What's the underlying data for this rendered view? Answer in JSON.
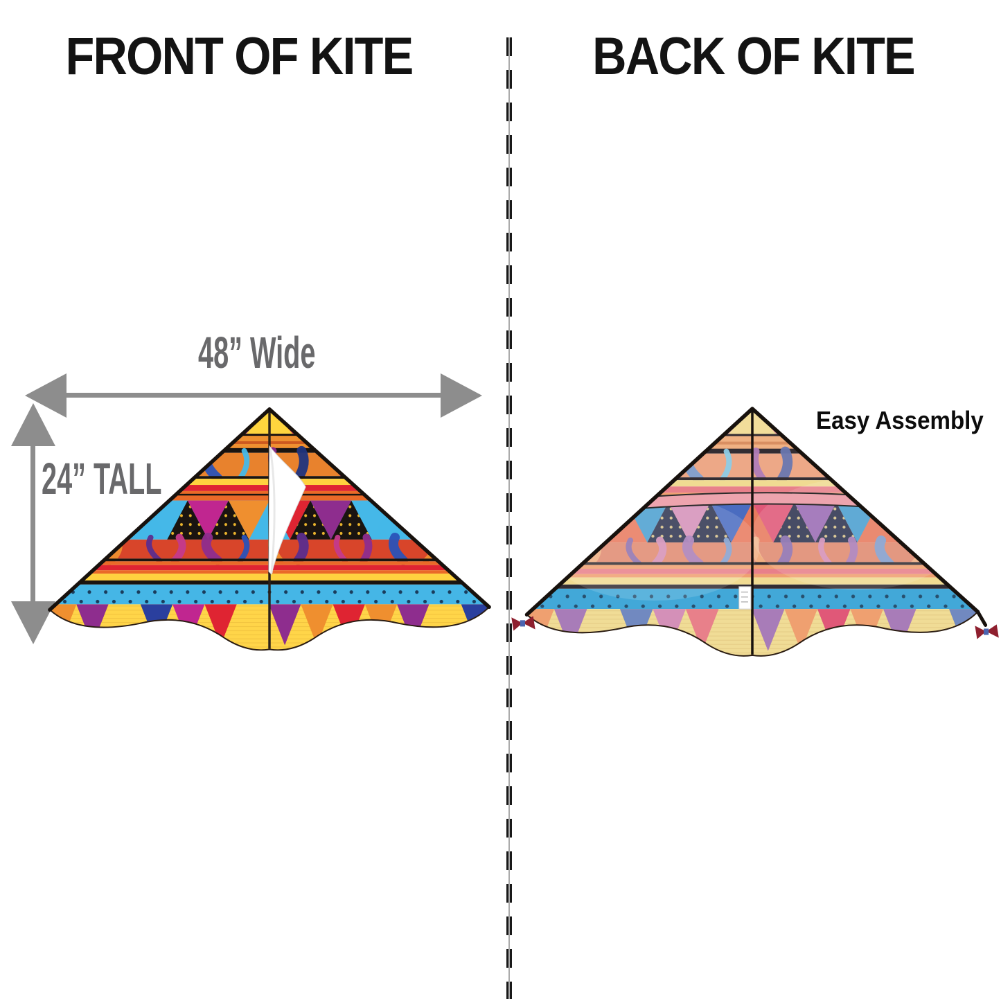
{
  "titles": {
    "front": "FRONT OF KITE",
    "back": "BACK OF KITE"
  },
  "annotations": {
    "width_label": "48” Wide",
    "height_label": "24” TALL",
    "assembly_label": "Easy Assembly",
    "width_value_inches": 48,
    "height_value_inches": 24
  },
  "colors": {
    "background": "#ffffff",
    "title_text": "#131313",
    "dimension_text": "#69696b",
    "assembly_text": "#0c0c0c",
    "arrow": "#8d8d8d",
    "divider_dash": "#191919",
    "divider_line": "#ababab"
  },
  "kites": {
    "front": {
      "label": "front-of-kite",
      "features": {
        "keel_flap": true,
        "spreader_pocket": false,
        "label_tag": false,
        "tassels": false,
        "sheen": false
      },
      "palette": {
        "edge": "#17110d",
        "spine": "#2a211a",
        "hem": "#2a1c12",
        "apex_left": "#e0529c",
        "apex_center": "#ffd53e",
        "apex_right": "#e23a50",
        "band_black": "#1a1410",
        "orange_band": "#ef9030",
        "orange_stripe": "#cd5a1f",
        "zebra1_base": "#e8822d",
        "zebra1": [
          "#2a52b8",
          "#45b8e8",
          "#8e2d8e",
          "#20347e",
          "#c43a8c"
        ],
        "yellow": "#ffd23f",
        "red": "#df2432",
        "orange2": "#ea6a28",
        "tri_bg": "#44b8e8",
        "tri_black": "#1a1410",
        "tri_dot": "#eab42c",
        "tri_down": [
          "#df2432",
          "#8e2d8e",
          "#45b8e8",
          "#c02690",
          "#ef8f2f"
        ],
        "zebra2_base": "#d8452a",
        "zebra2": [
          "#8e2d8e",
          "#2a52b8",
          "#ef8f2f",
          "#5c2d8e",
          "#c43a8c"
        ],
        "pink_stripe": "#e85a7a",
        "orange_red": "#e8542a",
        "blue_band": "#45b6e6",
        "blue_dot": "#1a3c5c",
        "skirt_base": "#ffd549",
        "skirt_line": "#e8b838",
        "skirt": [
          "#ef8f2f",
          "#8e2d8e",
          "none",
          "#2a3f9e",
          "#c02690",
          "#df2432",
          "none",
          "#8e2d8e",
          "#ef8f2f",
          "#df2432"
        ],
        "flap_fill": "#ffffff",
        "flap_edge": "#d8d8d8",
        "spreader_fill": "#e89bb0",
        "tag_fill": "#ffffff",
        "tassel": "#8e1f2e",
        "knot": "#4a64b0"
      }
    },
    "back": {
      "label": "back-of-kite",
      "features": {
        "keel_flap": false,
        "spreader_pocket": true,
        "label_tag": true,
        "tassels": true,
        "sheen": true
      },
      "palette": {
        "edge": "#17110d",
        "spine": "#17110d",
        "hem": "#2a1c12",
        "apex_left": "#eaa6bc",
        "apex_center": "#f2dd9a",
        "apex_right": "#e8909c",
        "band_black": "#332d33",
        "orange_band": "#f0b183",
        "orange_stripe": "#d98f62",
        "zebra1_base": "#eda887",
        "zebra1": [
          "#7f9fd0",
          "#8ecbe6",
          "#b07cb8",
          "#6a77b0",
          "#d490b8"
        ],
        "yellow": "#f0db92",
        "red": "#e8808a",
        "orange2": "#efa070",
        "tri_bg": "#e87a5e",
        "tri_black": "#2e3450",
        "tri_dot": "#d8c28a",
        "tri_down": [
          "#e05878",
          "#9a6cb4",
          "#4a9fd0",
          "#d490b8",
          "#4a6cc0"
        ],
        "zebra2_base": "#e08a70",
        "zebra2": [
          "#a87cb8",
          "#7f9fd0",
          "#f0b183",
          "#8a6fb0",
          "#d490b8"
        ],
        "pink_stripe": "#eda4ae",
        "orange_red": "#efa070",
        "blue_band": "#42a8d8",
        "blue_dot": "#28506e",
        "skirt_base": "#f0dc96",
        "skirt_line": "#ddc27c",
        "skirt": [
          "#efa070",
          "#a87cb8",
          "none",
          "#7189c0",
          "#d490b8",
          "#e8808a",
          "none",
          "#a87cb8",
          "#efa070",
          "#e05878"
        ],
        "flap_fill": "#ffffff",
        "flap_edge": "#d8d8d8",
        "spreader_fill": "#eda4ae",
        "tag_fill": "#ffffff",
        "tassel": "#8e1f2e",
        "knot": "#4a64b0"
      }
    }
  }
}
